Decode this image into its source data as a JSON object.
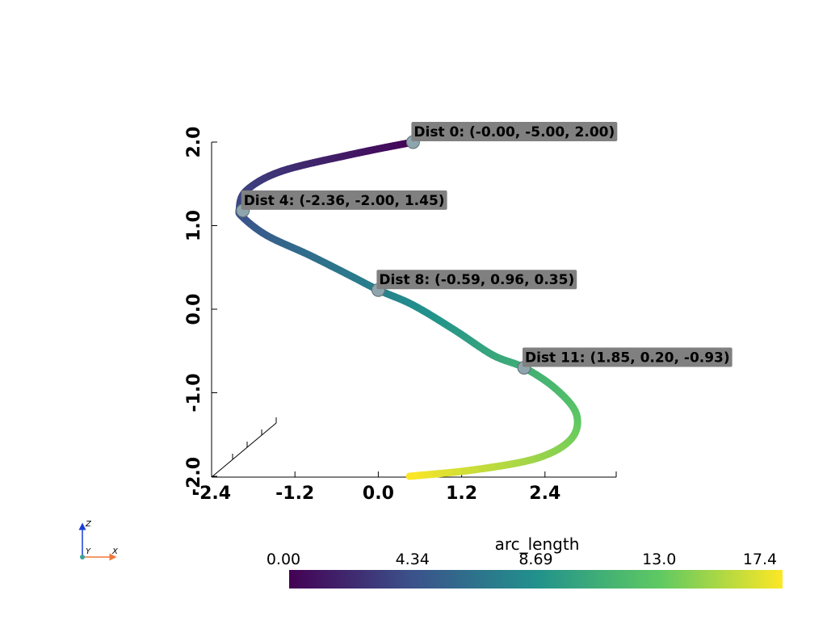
{
  "chart_data": {
    "type": "line",
    "title": "",
    "x_axis": {
      "ticks": [
        "-2.4",
        "-1.2",
        "0.0",
        "1.2",
        "2.4"
      ],
      "range": [
        -2.4,
        3.4
      ]
    },
    "z_axis": {
      "ticks": [
        "-2.0",
        "-1.0",
        "0.0",
        "1.0",
        "2.0"
      ],
      "range": [
        -2.0,
        2.0
      ]
    },
    "grid": false,
    "series": [
      {
        "points": [
          {
            "x": 0.5,
            "z": 2.0,
            "s": 0.0
          },
          {
            "x": -0.4,
            "z": 1.85,
            "s": 1.2
          },
          {
            "x": -1.4,
            "z": 1.65,
            "s": 2.5
          },
          {
            "x": -1.9,
            "z": 1.42,
            "s": 3.4
          },
          {
            "x": -2.0,
            "z": 1.2,
            "s": 3.9
          },
          {
            "x": -1.95,
            "z": 1.1,
            "s": 4.3
          },
          {
            "x": -1.6,
            "z": 0.88,
            "s": 5.2
          },
          {
            "x": -1.0,
            "z": 0.65,
            "s": 6.2
          },
          {
            "x": -0.4,
            "z": 0.4,
            "s": 7.0
          },
          {
            "x": 0.0,
            "z": 0.23,
            "s": 7.5
          },
          {
            "x": 0.5,
            "z": 0.05,
            "s": 8.3
          },
          {
            "x": 1.1,
            "z": -0.25,
            "s": 9.3
          },
          {
            "x": 1.65,
            "z": -0.55,
            "s": 10.3
          },
          {
            "x": 2.1,
            "z": -0.7,
            "s": 10.9
          },
          {
            "x": 2.55,
            "z": -0.95,
            "s": 11.7
          },
          {
            "x": 2.85,
            "z": -1.25,
            "s": 12.6
          },
          {
            "x": 2.78,
            "z": -1.55,
            "s": 13.6
          },
          {
            "x": 2.3,
            "z": -1.78,
            "s": 14.6
          },
          {
            "x": 1.4,
            "z": -1.92,
            "s": 15.9
          },
          {
            "x": 0.45,
            "z": -2.0,
            "s": 17.4
          }
        ]
      }
    ],
    "markers": [
      {
        "label": "Dist 0: (-0.00, -5.00, 2.00)",
        "x": 0.5,
        "z": 2.0
      },
      {
        "label": "Dist 4: (-2.36, -2.00, 1.45)",
        "x": -1.95,
        "z": 1.18
      },
      {
        "label": "Dist 8: (-0.59, 0.96, 0.35)",
        "x": 0.0,
        "z": 0.23
      },
      {
        "label": "Dist 11: (1.85, 0.20, -0.93)",
        "x": 2.1,
        "z": -0.7
      }
    ],
    "colorbar": {
      "title": "arc_length",
      "ticks": [
        "0.00",
        "4.34",
        "8.69",
        "13.0",
        "17.4"
      ],
      "range": [
        0.0,
        17.4
      ],
      "colormap": "viridis",
      "colors": [
        "#440154",
        "#3b528b",
        "#21918c",
        "#5ec962",
        "#fde725"
      ]
    },
    "orientation_axes": {
      "x": "X",
      "y": "Y",
      "z": "Z"
    }
  }
}
